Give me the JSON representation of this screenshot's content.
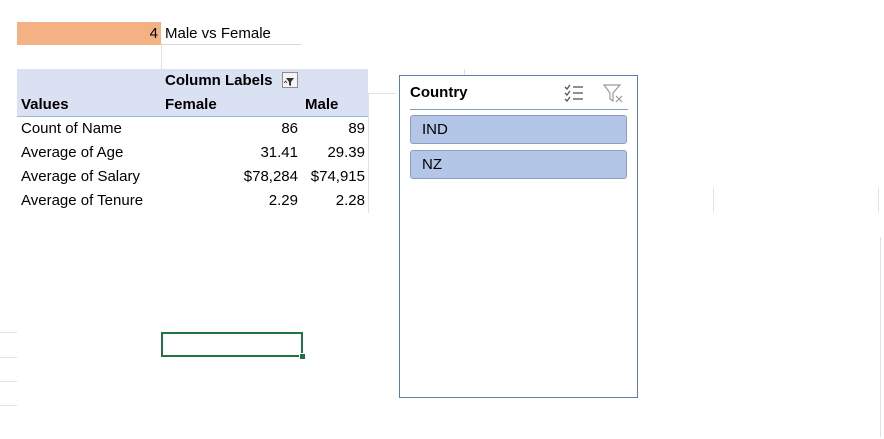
{
  "header": {
    "count_value": "4",
    "title": "Male vs Female"
  },
  "pivot": {
    "column_labels": "Column Labels",
    "values_header": "Values",
    "columns": [
      "Female",
      "Male"
    ],
    "rows": [
      {
        "label": "Count of Name",
        "female": "86",
        "male": "89"
      },
      {
        "label": "Average of Age",
        "female": "31.41",
        "male": "29.39"
      },
      {
        "label": "Average of Salary",
        "female": "$78,284",
        "male": "$74,915"
      },
      {
        "label": "Average of Tenure",
        "female": "2.29",
        "male": "2.28"
      }
    ]
  },
  "slicer": {
    "title": "Country",
    "items": [
      "IND",
      "NZ"
    ],
    "multi_select_icon": "multi-select-icon",
    "clear_filter_icon": "clear-filter-icon"
  },
  "colors": {
    "title_fill": "#f4b183",
    "pivot_header": "#d9e1f2",
    "slicer_item": "#b4c6e7",
    "selection": "#217346"
  }
}
